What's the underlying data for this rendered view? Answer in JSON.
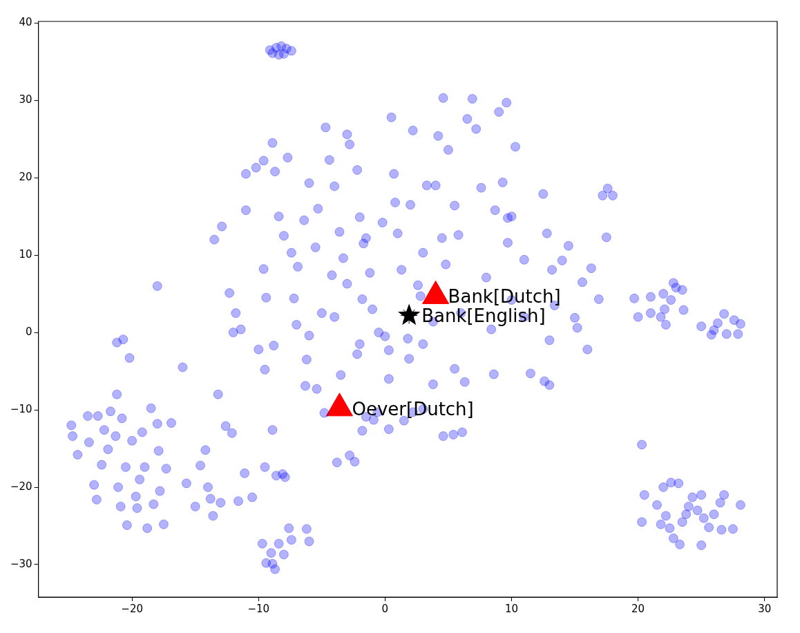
{
  "chart_data": {
    "type": "scatter",
    "xlim": [
      -27.4,
      31
    ],
    "ylim": [
      -34.2,
      40.2
    ],
    "xticks": [
      {
        "value": -20,
        "label": "−20"
      },
      {
        "value": -10,
        "label": "−10"
      },
      0,
      10,
      20,
      30
    ],
    "yticks": [
      {
        "value": -30,
        "label": "−30"
      },
      {
        "value": -20,
        "label": "−20"
      },
      {
        "value": -10,
        "label": "−10"
      },
      0,
      10,
      20,
      30,
      40
    ],
    "grid": false,
    "series": [
      {
        "color": "#0000ff",
        "marker": "circle",
        "x": [
          -9.1,
          -8.6,
          -8.2,
          -7.8,
          -7.4,
          -8.4,
          -8.9,
          -8.0,
          20.3,
          20.3,
          20.5,
          21.5,
          22,
          22.6,
          23.2,
          22.2,
          22.5,
          22.8,
          23.3,
          23.5,
          24,
          24.3,
          24.7,
          25,
          25,
          25.6,
          26,
          26.5,
          26.8,
          26.6,
          27.5,
          28.1,
          25.2,
          23.8,
          21.8,
          19.7,
          20,
          21,
          21,
          21.8,
          22,
          22.2,
          22.6,
          22.8,
          23,
          23.5,
          23.6,
          25,
          25.8,
          26,
          26.3,
          26.8,
          27,
          27.6,
          28.1,
          27.9,
          22.1,
          -24.8,
          -24.7,
          -24.3,
          -23.4,
          -23,
          -22.8,
          -22.7,
          -22.2,
          -21.9,
          -21.7,
          -21.2,
          -21.3,
          -21.1,
          -20.9,
          -20.5,
          -20,
          -19.7,
          -19.4,
          -19.2,
          -19,
          -19.6,
          -18.8,
          -18.5,
          -18,
          -17.9,
          -17.8,
          -17.5,
          -17.3,
          -16.9,
          -18.3,
          -20.4,
          -22.4,
          -23.5,
          -20.8,
          -9.7,
          -9.4,
          -9,
          -8.7,
          -8.4,
          -8,
          -7.6,
          -7.4,
          -6.2,
          -6,
          -8.9,
          -15.7,
          -15,
          -14.6,
          -14.2,
          -14,
          -13.8,
          -13.6,
          -13,
          -12.6,
          -12.1,
          -11.6,
          -11.1,
          -13.2,
          -16,
          -10.5,
          -9.5,
          -8.9,
          -8.6,
          -8.1,
          -7.9,
          -3.8,
          -2.8,
          -2.4,
          -3.5,
          -6.2,
          -6.3,
          -5.4,
          -1.8,
          -1.5,
          -0.6,
          0.3,
          1.5,
          2.2,
          3,
          4.6,
          5.4,
          6.1,
          -0.9,
          -4.8,
          -2.2,
          0.3,
          1.9,
          3.8,
          5.5,
          6.3,
          8.6,
          11.5,
          12.6,
          13,
          13,
          16,
          -20.2,
          -21.2,
          -20.7,
          -18,
          -9.5,
          -8.8,
          -12.9,
          -12.3,
          -13.5,
          -11.8,
          -11,
          -12,
          -11.4,
          -11,
          -9.6,
          -9.4,
          -9.6,
          -8.9,
          -8.4,
          -8,
          -7.4,
          -7.2,
          -7,
          -6.4,
          -6,
          -5.5,
          -5,
          -4.7,
          -4.4,
          -4,
          -3.6,
          -3.3,
          -3,
          -2.8,
          -2.2,
          -2,
          -1.7,
          -1.2,
          -1,
          -0.5,
          -0.2,
          0.5,
          0.7,
          1,
          1.3,
          1.8,
          2,
          2.2,
          2.8,
          3,
          3.3,
          3.8,
          4.2,
          4.6,
          4.8,
          5,
          5.5,
          5.8,
          6,
          6.5,
          6.9,
          7.2,
          7.6,
          8,
          8.4,
          8.7,
          9,
          9.3,
          9.6,
          9.7,
          10,
          10.3,
          11,
          12.5,
          12.8,
          13.2,
          13.4,
          14,
          14.5,
          15,
          15.2,
          15.6,
          16.3,
          16.9,
          17.2,
          17.6,
          18,
          17.5,
          -5.3,
          -3,
          -1.5,
          0,
          -6,
          -4.2,
          -4,
          4,
          10,
          9.7,
          11,
          0.3,
          3,
          -2,
          -1.8,
          2.6,
          -8.7,
          -10.2,
          -7.7,
          0.8,
          4.5,
          -6.9,
          -10
        ],
        "values": [
          36.5,
          36.8,
          37,
          36.7,
          36.4,
          35.9,
          36.1,
          36.0,
          -14.5,
          -24.5,
          -21,
          -22.3,
          -20,
          -19.4,
          -19.5,
          -23.7,
          -25.3,
          -26.6,
          -27.4,
          -24.5,
          -22.5,
          -21.3,
          -23,
          -21,
          -27.5,
          -25.2,
          -23.5,
          -22,
          -21,
          -25.5,
          -25.4,
          -22.3,
          -24,
          -23.5,
          -24.8,
          4.4,
          2,
          2.5,
          4.6,
          2,
          5,
          1,
          4.2,
          6.4,
          5.8,
          5.5,
          2.9,
          0.8,
          -0.3,
          0.3,
          1.2,
          2.4,
          -0.2,
          1.6,
          1.1,
          -0.2,
          3.0,
          -12,
          -13.4,
          -15.8,
          -14.2,
          -19.7,
          -21.6,
          -10.8,
          -12.6,
          -15.1,
          -10.2,
          -8,
          -13.4,
          -20,
          -22.5,
          -17.4,
          -14,
          -21.2,
          -19,
          -12.9,
          -17.4,
          -22.7,
          -25.3,
          -9.8,
          -11.8,
          -15.3,
          -20.5,
          -24.8,
          -17.6,
          -11.7,
          -22.2,
          -24.9,
          -17.1,
          -10.8,
          -11.1,
          -27.3,
          -29.8,
          -28.5,
          -30.6,
          -27.3,
          -28.7,
          -25.3,
          -26.8,
          -25.4,
          -27,
          -29.9,
          -19.5,
          -22.5,
          -17.2,
          -15.2,
          -20,
          -21.5,
          -23.7,
          -22,
          -12.1,
          -13,
          -21.8,
          -18.2,
          -8,
          -4.5,
          -21.3,
          -17.4,
          -12.6,
          -18.5,
          -18.3,
          -18.7,
          -16.8,
          -15.9,
          -16.7,
          -5.5,
          -3.5,
          -6.9,
          -7.3,
          -12.7,
          -10.9,
          -10.3,
          -12.5,
          -11.4,
          -10.3,
          -9.9,
          -13.4,
          -13.2,
          -12.9,
          -11.3,
          -10.4,
          -2.8,
          -6,
          -3.4,
          -6.7,
          -4.7,
          -6.4,
          -5.4,
          -5.3,
          -6.3,
          -6.8,
          -1,
          -2.2,
          -3.3,
          -1.3,
          -0.9,
          6,
          -4.8,
          -1.7,
          13.7,
          5.1,
          12,
          2.5,
          15.8,
          0,
          0.4,
          20.5,
          8.2,
          4.5,
          22.2,
          24.5,
          15,
          12.5,
          10.3,
          4.4,
          1,
          14.5,
          19.3,
          11,
          2.5,
          26.5,
          22.3,
          18.9,
          13,
          9.6,
          6.3,
          24.3,
          21,
          14.9,
          11.5,
          7.7,
          3,
          0,
          14.2,
          27.8,
          20.5,
          12.8,
          8.1,
          -0.8,
          16.5,
          26.1,
          4.7,
          10.3,
          19,
          1.4,
          25.4,
          30.3,
          8.8,
          23.6,
          16.4,
          12.6,
          2.5,
          27.6,
          30.2,
          26.3,
          18.7,
          7.1,
          0.4,
          15.8,
          28.5,
          19.4,
          29.7,
          11.6,
          4.2,
          24,
          9.4,
          17.9,
          12.8,
          8.1,
          3.5,
          9.3,
          11.2,
          1.9,
          0.6,
          6.5,
          8.3,
          4.3,
          17.7,
          18.6,
          17.7,
          12.3,
          16,
          25.6,
          12.2,
          -0.5,
          -0.4,
          7.4,
          2,
          19,
          15,
          14.8,
          2,
          -2.3,
          -1.5,
          -1.5,
          4.3,
          6.1,
          20.8,
          21.3,
          22.6,
          16.8,
          12.2,
          8.5,
          -2.2
        ]
      },
      {
        "name": "Bank[Dutch]",
        "color": "#ff0000",
        "marker": "triangle",
        "x": [
          4
        ],
        "values": [
          4.7
        ]
      },
      {
        "name": "Bank[English]",
        "color": "#000000",
        "marker": "star",
        "x": [
          1.9
        ],
        "values": [
          2.2
        ]
      },
      {
        "name": "Oever[Dutch]",
        "color": "#ff0000",
        "marker": "triangle",
        "x": [
          -3.6
        ],
        "values": [
          -9.8
        ]
      }
    ]
  }
}
